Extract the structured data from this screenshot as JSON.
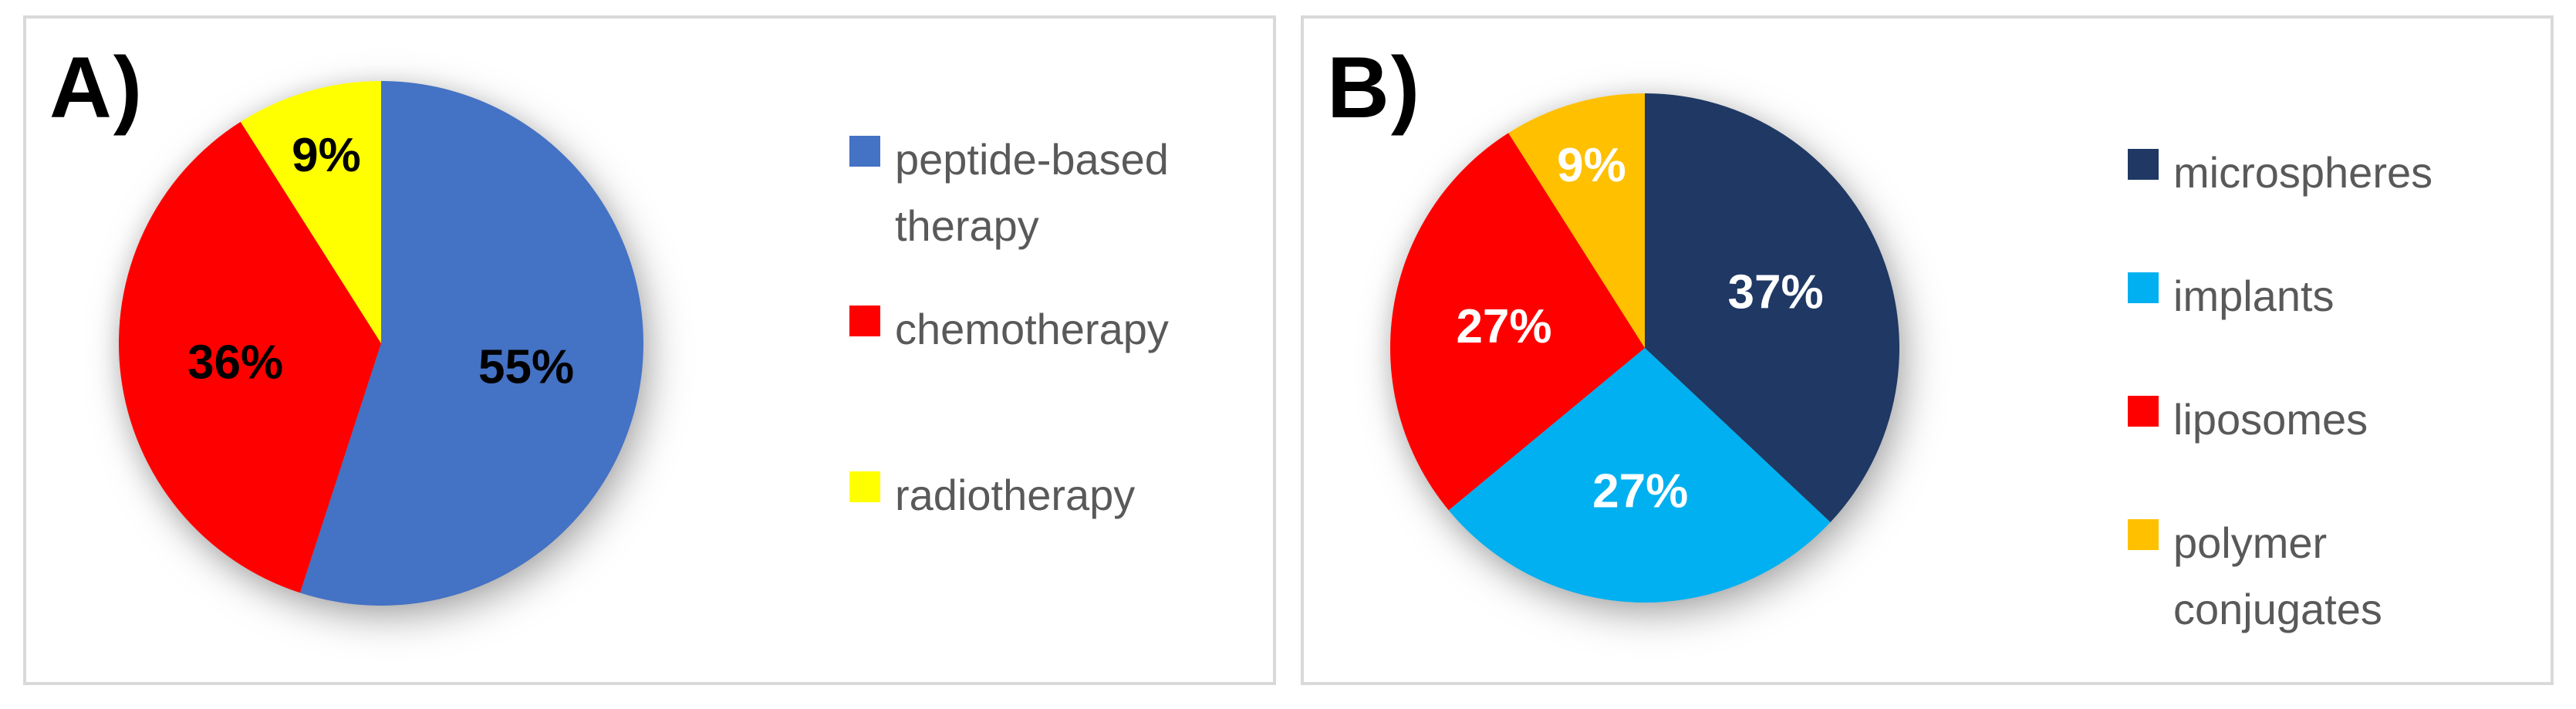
{
  "styles": {
    "background": "#FFFFFF",
    "panel_border_color": "#D9D9D9",
    "legend_text_color": "#595959",
    "panel_label_color": "#000000"
  },
  "chart_data": [
    {
      "type": "pie",
      "panel_label": "A)",
      "categories": [
        "peptide-based therapy",
        "chemotherapy",
        "radiotherapy"
      ],
      "values": [
        55,
        36,
        9
      ],
      "data_labels": [
        "55%",
        "36%",
        "9%"
      ],
      "colors": [
        "#4472C4",
        "#FF0000",
        "#FFFF00"
      ],
      "data_label_color": "#000000",
      "legend_entries": [
        "peptide-based therapy",
        "chemotherapy",
        "radiotherapy"
      ],
      "legend_position": "right",
      "start_angle_deg": 0,
      "direction": "clockwise"
    },
    {
      "type": "pie",
      "panel_label": "B)",
      "categories": [
        "microspheres",
        "implants",
        "liposomes",
        "polymer conjugates"
      ],
      "values": [
        37,
        27,
        27,
        9
      ],
      "data_labels": [
        "37%",
        "27%",
        "27%",
        "9%"
      ],
      "colors": [
        "#1F3864",
        "#00B0F0",
        "#FF0000",
        "#FFC000"
      ],
      "data_label_color": "#FFFFFF",
      "legend_entries": [
        "microspheres",
        "implants",
        "liposomes",
        "polymer conjugates"
      ],
      "legend_position": "right",
      "start_angle_deg": 0,
      "direction": "clockwise"
    }
  ]
}
